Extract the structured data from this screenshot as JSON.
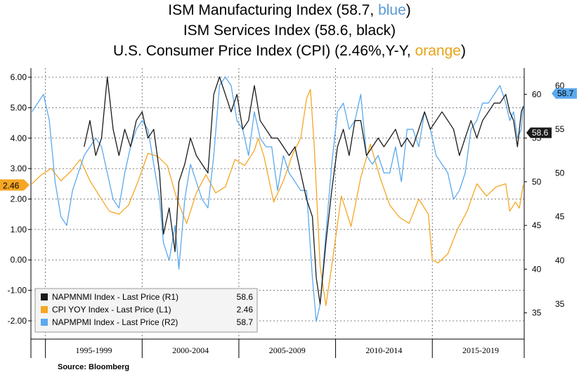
{
  "title": {
    "line1_text": "ISM Manufacturing Index (58.7, ",
    "line1_color_word": "blue",
    "line1_end": ")",
    "line2_text": "ISM Services Index (58.6, black)",
    "line3_text": "U.S. Consumer Price Index (CPI) (2.46%,Y-Y, ",
    "line3_color_word": "orange",
    "line3_end": ")"
  },
  "source": "Source: Bloomberg",
  "colors": {
    "services": "#1a1a1a",
    "cpi": "#f5a623",
    "manufacturing": "#5aa9ef",
    "grid": "#555555",
    "plot_bg": "#ffffff"
  },
  "chart_data": {
    "type": "line",
    "x_range": [
      1994.25,
      2019.75
    ],
    "left_axis": {
      "ticks": [
        "6.00",
        "5.00",
        "4.00",
        "3.00",
        "2.00",
        "1.00",
        "0.00",
        "-1.00",
        "-2.00"
      ],
      "range": [
        -2.6,
        6.3
      ]
    },
    "right_axis": {
      "ticks": [
        "60",
        "55",
        "50",
        "45",
        "40",
        "35"
      ],
      "range": [
        32,
        63
      ]
    },
    "x_period_labels": [
      "1995-1999",
      "2000-2004",
      "2005-2009",
      "2010-2014",
      "2015-2019"
    ],
    "last_value_tags": {
      "services": "58.6",
      "cpi": "2.46",
      "manufacturing": "58.7"
    },
    "legend": [
      {
        "label": "NAPMNMI Index - Last Price (R1)",
        "value": "58.6",
        "series": "services"
      },
      {
        "label": "CPI YOY Index - Last Price (L1)",
        "value": "2.46",
        "series": "cpi"
      },
      {
        "label": "NAPMPMI Index - Last Price (R2)",
        "value": "58.7",
        "series": "manufacturing"
      }
    ],
    "series": [
      {
        "key": "cpi",
        "axis": "left",
        "x": [
          1994.3,
          1994.8,
          1995.3,
          1995.8,
          1996.3,
          1996.8,
          1997.3,
          1997.8,
          1998.3,
          1998.8,
          1999.3,
          1999.8,
          2000.3,
          2000.8,
          2001.3,
          2001.8,
          2002.3,
          2002.8,
          2003.3,
          2003.8,
          2004.3,
          2004.8,
          2005.3,
          2005.8,
          2006.0,
          2006.3,
          2006.8,
          2007.3,
          2007.8,
          2008.2,
          2008.5,
          2008.7,
          2008.9,
          2009.2,
          2009.5,
          2009.8,
          2010.3,
          2010.8,
          2011.3,
          2011.8,
          2012.3,
          2012.8,
          2013.3,
          2013.8,
          2014.3,
          2014.8,
          2015.0,
          2015.3,
          2015.8,
          2016.3,
          2016.8,
          2017.3,
          2017.8,
          2018.3,
          2018.8,
          2019.0,
          2019.3,
          2019.5,
          2019.7
        ],
        "y": [
          2.5,
          2.8,
          3.0,
          2.6,
          2.9,
          3.3,
          2.6,
          2.1,
          1.6,
          1.5,
          1.8,
          2.6,
          3.5,
          3.4,
          3.1,
          2.0,
          1.2,
          2.2,
          2.8,
          2.2,
          2.4,
          3.3,
          3.1,
          3.6,
          4.0,
          3.4,
          1.9,
          2.6,
          3.5,
          4.0,
          5.3,
          5.6,
          3.7,
          -0.2,
          -1.5,
          -0.2,
          2.1,
          1.1,
          2.7,
          3.8,
          2.7,
          1.8,
          1.4,
          1.2,
          2.0,
          1.5,
          0.0,
          -0.1,
          0.2,
          1.0,
          1.6,
          2.5,
          2.1,
          2.4,
          2.5,
          1.6,
          1.9,
          1.7,
          2.46
        ]
      },
      {
        "key": "manufacturing",
        "axis": "right",
        "x": [
          1994.3,
          1994.6,
          1994.9,
          1995.2,
          1995.5,
          1995.8,
          1996.1,
          1996.4,
          1996.7,
          1997.0,
          1997.3,
          1997.6,
          1997.9,
          1998.2,
          1998.5,
          1998.8,
          1999.1,
          1999.4,
          1999.7,
          2000.0,
          2000.3,
          2000.6,
          2000.9,
          2001.1,
          2001.4,
          2001.7,
          2001.9,
          2002.2,
          2002.5,
          2002.8,
          2003.1,
          2003.4,
          2003.7,
          2004.0,
          2004.3,
          2004.6,
          2004.9,
          2005.2,
          2005.5,
          2005.8,
          2006.1,
          2006.4,
          2006.7,
          2007.0,
          2007.3,
          2007.6,
          2007.9,
          2008.2,
          2008.5,
          2008.8,
          2009.0,
          2009.2,
          2009.5,
          2009.8,
          2010.1,
          2010.4,
          2010.7,
          2011.0,
          2011.3,
          2011.6,
          2011.9,
          2012.2,
          2012.5,
          2012.8,
          2013.1,
          2013.4,
          2013.7,
          2014.0,
          2014.3,
          2014.6,
          2014.9,
          2015.2,
          2015.5,
          2015.8,
          2016.1,
          2016.4,
          2016.7,
          2017.0,
          2017.3,
          2017.6,
          2017.9,
          2018.2,
          2018.5,
          2018.8,
          2019.0,
          2019.2,
          2019.4,
          2019.6,
          2019.7
        ],
        "y": [
          58,
          59,
          60,
          57,
          50,
          46,
          45,
          49,
          51,
          53,
          54,
          55,
          54,
          51,
          48,
          47,
          51,
          54,
          56,
          57,
          56,
          52,
          48,
          43,
          41,
          45,
          40,
          48,
          52,
          50,
          48,
          47,
          53,
          61,
          62,
          61,
          57,
          56,
          53,
          58,
          55,
          54,
          54,
          49,
          53,
          51,
          50,
          49,
          49,
          39,
          34,
          36,
          44,
          52,
          58,
          59,
          56,
          57,
          60,
          53,
          52,
          53,
          51,
          51,
          54,
          50,
          56,
          56,
          54,
          58,
          56,
          53,
          52,
          51,
          48,
          49,
          51,
          56,
          57,
          59,
          59,
          60,
          61,
          59,
          57,
          58,
          55,
          56,
          58.7
        ]
      },
      {
        "key": "services",
        "axis": "right",
        "x": [
          1997.0,
          1997.3,
          1997.6,
          1997.9,
          1998.2,
          1998.5,
          1998.8,
          1999.1,
          1999.4,
          1999.7,
          2000.0,
          2000.3,
          2000.6,
          2000.9,
          2001.1,
          2001.4,
          2001.7,
          2001.9,
          2002.2,
          2002.5,
          2002.8,
          2003.1,
          2003.4,
          2003.7,
          2004.0,
          2004.3,
          2004.6,
          2004.9,
          2005.2,
          2005.5,
          2005.8,
          2006.1,
          2006.4,
          2006.7,
          2007.0,
          2007.3,
          2007.6,
          2007.9,
          2008.2,
          2008.5,
          2008.8,
          2009.0,
          2009.2,
          2009.5,
          2009.8,
          2010.1,
          2010.4,
          2010.7,
          2011.0,
          2011.3,
          2011.6,
          2011.9,
          2012.2,
          2012.5,
          2012.8,
          2013.1,
          2013.4,
          2013.7,
          2014.0,
          2014.3,
          2014.6,
          2014.9,
          2015.2,
          2015.5,
          2015.8,
          2016.1,
          2016.4,
          2016.7,
          2017.0,
          2017.3,
          2017.6,
          2017.9,
          2018.2,
          2018.5,
          2018.8,
          2019.0,
          2019.2,
          2019.4,
          2019.6,
          2019.7
        ],
        "y": [
          54,
          57,
          53,
          55,
          62,
          56,
          53,
          56,
          54,
          57,
          58,
          55,
          56,
          51,
          44,
          47,
          42,
          50,
          52,
          55,
          53,
          52,
          51,
          60,
          62,
          60,
          58,
          60,
          56,
          57,
          61,
          57,
          56,
          55,
          55,
          54,
          53,
          54,
          51,
          48,
          46,
          39,
          36,
          43,
          49,
          54,
          56,
          53,
          57,
          57,
          53,
          54,
          55,
          54,
          55,
          56,
          54,
          55,
          54,
          56,
          58,
          56,
          57,
          58,
          57,
          56,
          53,
          55,
          57,
          55,
          57,
          58,
          59,
          59,
          60,
          58,
          57,
          54,
          58,
          58.6
        ]
      }
    ]
  }
}
